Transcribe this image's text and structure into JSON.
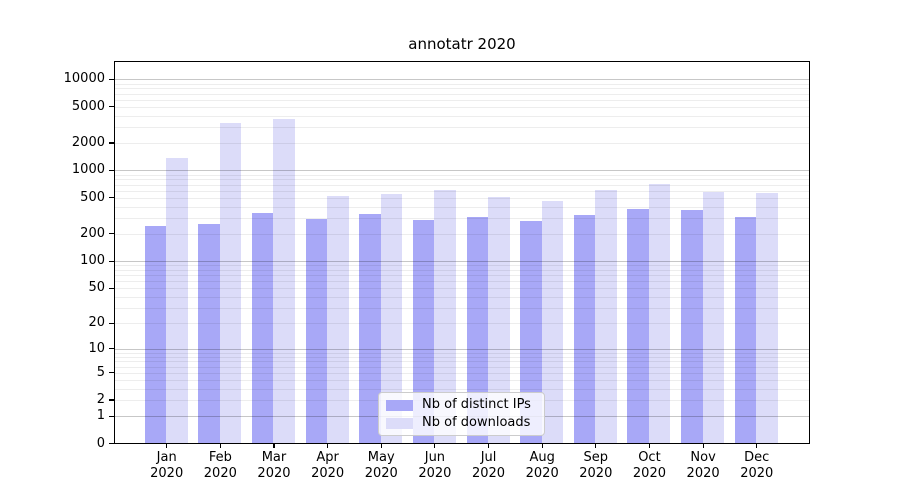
{
  "figure": {
    "background": "#ffffff"
  },
  "chart_data": {
    "type": "bar",
    "title": "annotatr 2020",
    "categories": [
      "Jan",
      "Feb",
      "Mar",
      "Apr",
      "May",
      "Jun",
      "Jul",
      "Aug",
      "Sep",
      "Oct",
      "Nov",
      "Dec"
    ],
    "year_label": "2020",
    "series": [
      {
        "name": "Nb of distinct IPs",
        "color": "#a8a8f7",
        "values": [
          245,
          255,
          340,
          290,
          330,
          285,
          305,
          275,
          320,
          375,
          365,
          305
        ]
      },
      {
        "name": "Nb of downloads",
        "color": "#dcdcf9",
        "values": [
          1360,
          3300,
          3650,
          525,
          555,
          610,
          505,
          465,
          610,
          710,
          575,
          560
        ]
      }
    ],
    "yscale": "log1p",
    "y_ticks": [
      0,
      1,
      2,
      5,
      10,
      20,
      50,
      100,
      200,
      500,
      1000,
      2000,
      5000,
      10000
    ],
    "y_major_gridlines": [
      1,
      10,
      100,
      1000,
      10000
    ],
    "y_minor_gridline_subs": [
      2,
      3,
      4,
      5,
      6,
      7,
      8,
      9
    ],
    "ylim": [
      0,
      15800
    ],
    "xlabel": "",
    "ylabel": "",
    "grid": "horizontal",
    "legend_position": "lower-center-inside",
    "colors": {
      "spine": "#000000",
      "major_grid": "#c9c9c9",
      "minor_grid": "#ebebeb",
      "legend_border": "#cccccc"
    }
  }
}
